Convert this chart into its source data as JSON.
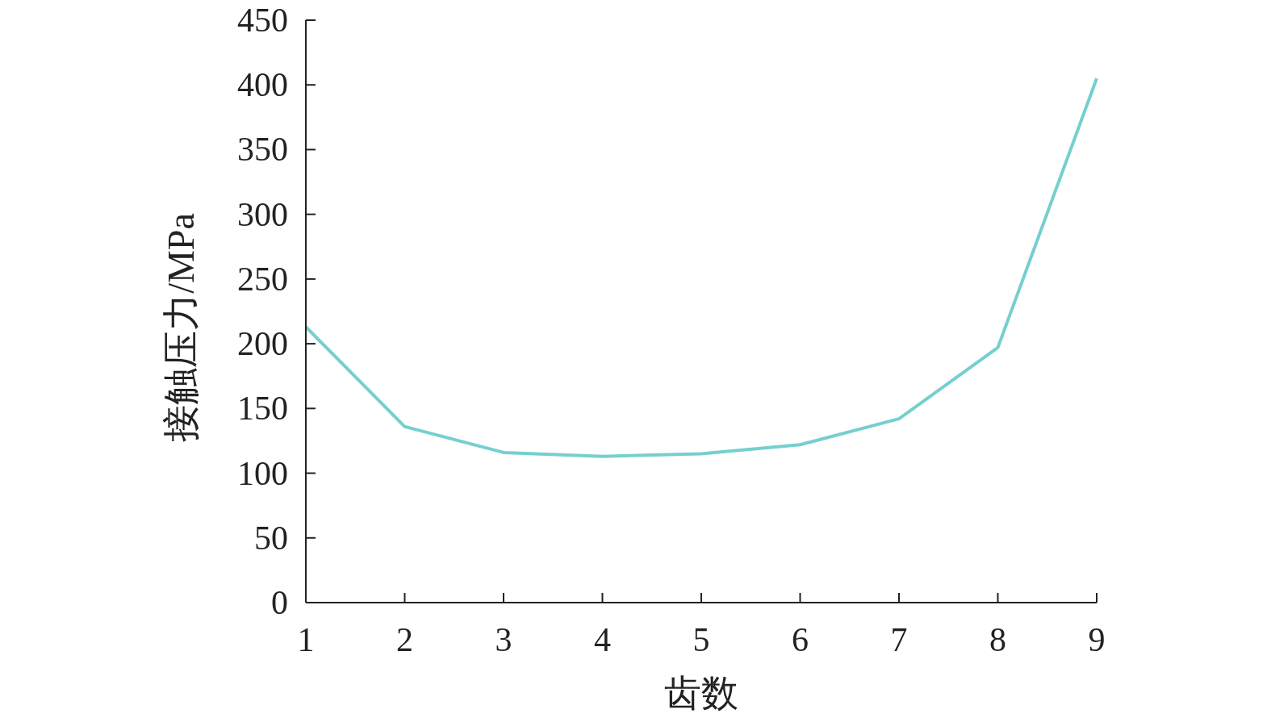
{
  "chart_data": {
    "type": "line",
    "xlabel": "齿数",
    "ylabel": "接触压力/MPa",
    "x": [
      1,
      2,
      3,
      4,
      5,
      6,
      7,
      8,
      9
    ],
    "series": [
      {
        "color": "#76cfcf",
        "values": [
          213,
          136,
          116,
          113,
          115,
          122,
          142,
          197,
          405
        ]
      }
    ],
    "xlim": [
      1,
      9
    ],
    "xticks": [
      1,
      2,
      3,
      4,
      5,
      6,
      7,
      8,
      9
    ],
    "ylim": [
      0,
      450
    ],
    "yticks": [
      0,
      50,
      100,
      150,
      200,
      250,
      300,
      350,
      400,
      450
    ],
    "grid": false,
    "marker": "none",
    "line_style": "solid"
  }
}
